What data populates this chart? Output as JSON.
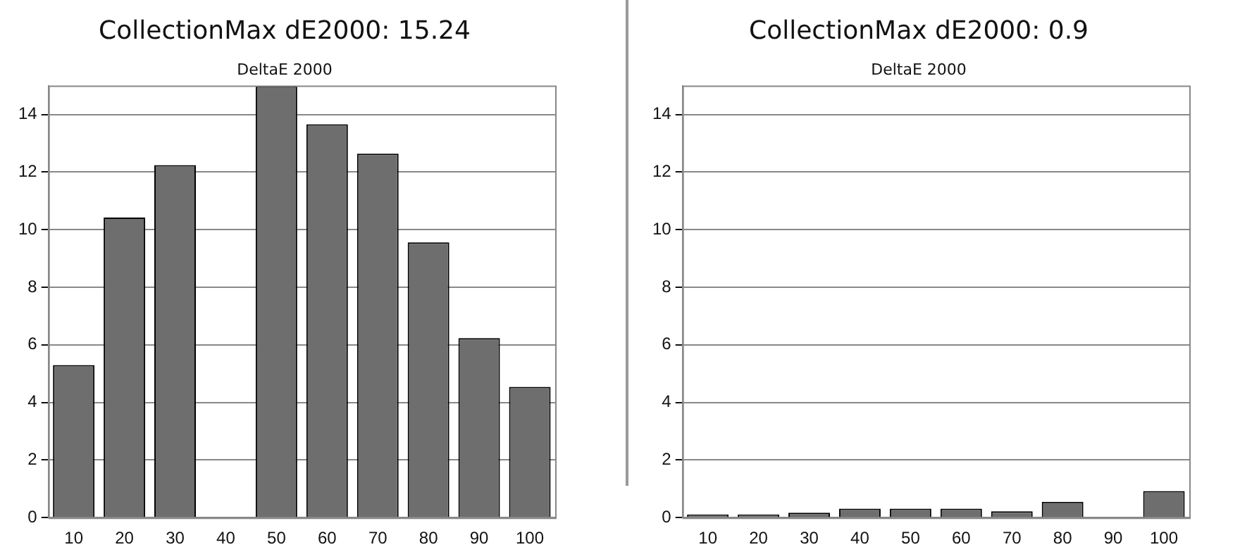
{
  "chart_data": [
    {
      "type": "bar",
      "title": "CollectionMax dE2000: 15.24",
      "subtitle": "DeltaE 2000",
      "categories": [
        "10",
        "20",
        "30",
        "40",
        "50",
        "60",
        "70",
        "80",
        "90",
        "100"
      ],
      "values": [
        5.3,
        10.42,
        12.24,
        null,
        14.98,
        13.66,
        12.64,
        9.56,
        6.23,
        4.54
      ],
      "color": "#6e6e6e",
      "ylim": [
        0,
        15
      ],
      "yticks": [
        0,
        2,
        4,
        6,
        8,
        10,
        12,
        14
      ],
      "grid": "y"
    },
    {
      "type": "bar",
      "title": "CollectionMax dE2000: 0.9",
      "subtitle": "DeltaE 2000",
      "categories": [
        "10",
        "20",
        "30",
        "40",
        "50",
        "60",
        "70",
        "80",
        "90",
        "100"
      ],
      "values": [
        0.11,
        0.11,
        0.17,
        0.31,
        0.31,
        0.31,
        0.22,
        0.55,
        0,
        0.92
      ],
      "color": "#6e6e6e",
      "ylim": [
        0,
        15
      ],
      "yticks": [
        0,
        2,
        4,
        6,
        8,
        10,
        12,
        14
      ],
      "grid": "y"
    }
  ]
}
